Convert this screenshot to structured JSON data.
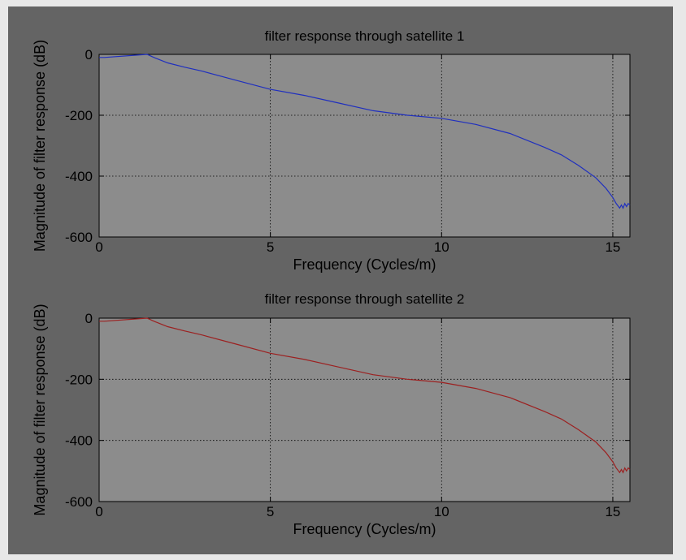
{
  "figure": {
    "background": "#646464",
    "axes_background": "#8c8c8c"
  },
  "chart_data": [
    {
      "type": "line",
      "title": "filter response through satellite 1",
      "xlabel": "Frequency (Cycles/m)",
      "ylabel": "Magnitude of filter response (dB)",
      "xlim": [
        0,
        15.5
      ],
      "ylim": [
        -600,
        0
      ],
      "xticks": [
        0,
        5,
        10,
        15
      ],
      "yticks": [
        0,
        -200,
        -400,
        -600
      ],
      "grid": true,
      "series": [
        {
          "color": "#1f2fbf",
          "x": [
            0,
            0.15,
            1.4,
            1.6,
            2,
            2.5,
            3,
            4,
            5,
            6,
            7,
            8,
            9,
            10,
            11,
            12,
            13,
            13.5,
            14,
            14.5,
            14.8,
            15,
            15.1,
            15.2,
            15.25,
            15.3,
            15.35,
            15.4,
            15.45,
            15.5
          ],
          "y": [
            -10,
            -10,
            0,
            -10,
            -28,
            -42,
            -55,
            -85,
            -115,
            -135,
            -160,
            -185,
            -200,
            -210,
            -230,
            -260,
            -305,
            -330,
            -365,
            -405,
            -440,
            -470,
            -490,
            -505,
            -495,
            -505,
            -490,
            -500,
            -490,
            -495
          ]
        }
      ]
    },
    {
      "type": "line",
      "title": "filter response through satellite 2",
      "xlabel": "Frequency (Cycles/m)",
      "ylabel": "Magnitude of filter response (dB)",
      "xlim": [
        0,
        15.5
      ],
      "ylim": [
        -600,
        0
      ],
      "xticks": [
        0,
        5,
        10,
        15
      ],
      "yticks": [
        0,
        -200,
        -400,
        -600
      ],
      "grid": true,
      "series": [
        {
          "color": "#9c2020",
          "x": [
            0,
            0.15,
            1.4,
            1.6,
            2,
            2.5,
            3,
            4,
            5,
            6,
            7,
            8,
            9,
            10,
            11,
            12,
            13,
            13.5,
            14,
            14.5,
            14.8,
            15,
            15.1,
            15.2,
            15.25,
            15.3,
            15.35,
            15.4,
            15.45,
            15.5
          ],
          "y": [
            -10,
            -10,
            0,
            -10,
            -28,
            -42,
            -55,
            -85,
            -115,
            -135,
            -160,
            -185,
            -200,
            -210,
            -230,
            -260,
            -305,
            -330,
            -365,
            -405,
            -440,
            -470,
            -490,
            -505,
            -495,
            -505,
            -490,
            -500,
            -490,
            -495
          ]
        }
      ]
    }
  ]
}
